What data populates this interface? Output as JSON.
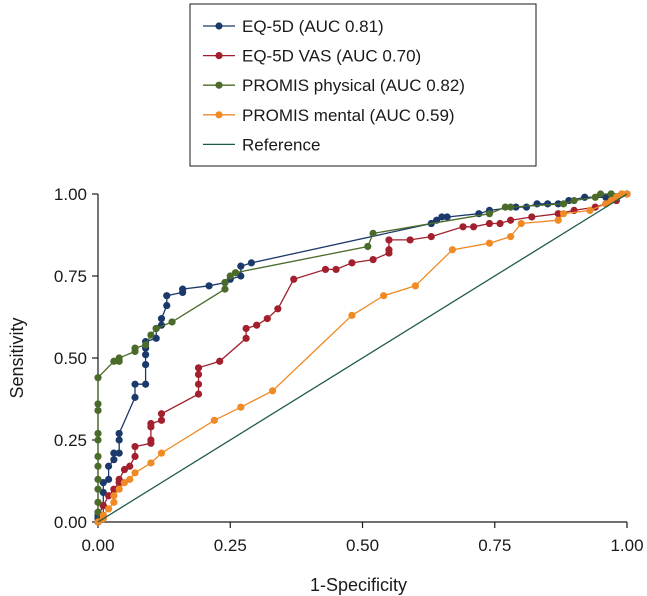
{
  "chart_data": {
    "type": "line",
    "xlabel": "1-Specificity",
    "ylabel": "Sensitivity",
    "xlim": [
      0,
      1
    ],
    "ylim": [
      0,
      1
    ],
    "xticks": [
      "0.00",
      "0.25",
      "0.50",
      "0.75",
      "1.00"
    ],
    "yticks": [
      "0.00",
      "0.25",
      "0.50",
      "0.75",
      "1.00"
    ],
    "legend_placement": "top-center",
    "grid": false,
    "series": [
      {
        "name": "EQ-5D (AUC 0.81)",
        "color": "#1b3a6b",
        "markers": true,
        "points": [
          [
            0,
            0
          ],
          [
            0,
            0.01
          ],
          [
            0,
            0.02
          ],
          [
            0.01,
            0.05
          ],
          [
            0.01,
            0.09
          ],
          [
            0.01,
            0.12
          ],
          [
            0.02,
            0.13
          ],
          [
            0.02,
            0.17
          ],
          [
            0.03,
            0.19
          ],
          [
            0.03,
            0.21
          ],
          [
            0.04,
            0.21
          ],
          [
            0.04,
            0.25
          ],
          [
            0.04,
            0.27
          ],
          [
            0.07,
            0.38
          ],
          [
            0.07,
            0.42
          ],
          [
            0.09,
            0.42
          ],
          [
            0.09,
            0.48
          ],
          [
            0.09,
            0.51
          ],
          [
            0.09,
            0.53
          ],
          [
            0.09,
            0.55
          ],
          [
            0.11,
            0.56
          ],
          [
            0.11,
            0.59
          ],
          [
            0.12,
            0.6
          ],
          [
            0.12,
            0.62
          ],
          [
            0.13,
            0.66
          ],
          [
            0.13,
            0.69
          ],
          [
            0.16,
            0.7
          ],
          [
            0.16,
            0.71
          ],
          [
            0.21,
            0.72
          ],
          [
            0.24,
            0.73
          ],
          [
            0.25,
            0.74
          ],
          [
            0.27,
            0.75
          ],
          [
            0.27,
            0.78
          ],
          [
            0.29,
            0.79
          ],
          [
            0.63,
            0.91
          ],
          [
            0.64,
            0.92
          ],
          [
            0.65,
            0.93
          ],
          [
            0.66,
            0.93
          ],
          [
            0.72,
            0.94
          ],
          [
            0.74,
            0.95
          ],
          [
            0.79,
            0.96
          ],
          [
            0.81,
            0.96
          ],
          [
            0.83,
            0.97
          ],
          [
            0.85,
            0.97
          ],
          [
            0.87,
            0.97
          ],
          [
            0.89,
            0.98
          ],
          [
            0.92,
            0.99
          ],
          [
            0.96,
            0.99
          ],
          [
            0.97,
            1.0
          ],
          [
            0.99,
            1.0
          ],
          [
            1.0,
            1.0
          ]
        ]
      },
      {
        "name": "EQ-5D VAS (AUC 0.70)",
        "color": "#a2202e",
        "markers": true,
        "points": [
          [
            0,
            0
          ],
          [
            0.01,
            0.02
          ],
          [
            0.01,
            0.05
          ],
          [
            0.02,
            0.08
          ],
          [
            0.03,
            0.1
          ],
          [
            0.04,
            0.12
          ],
          [
            0.04,
            0.13
          ],
          [
            0.05,
            0.16
          ],
          [
            0.06,
            0.17
          ],
          [
            0.07,
            0.2
          ],
          [
            0.07,
            0.23
          ],
          [
            0.1,
            0.24
          ],
          [
            0.1,
            0.25
          ],
          [
            0.1,
            0.29
          ],
          [
            0.1,
            0.3
          ],
          [
            0.12,
            0.31
          ],
          [
            0.12,
            0.33
          ],
          [
            0.19,
            0.39
          ],
          [
            0.19,
            0.42
          ],
          [
            0.19,
            0.45
          ],
          [
            0.19,
            0.47
          ],
          [
            0.23,
            0.49
          ],
          [
            0.28,
            0.56
          ],
          [
            0.28,
            0.59
          ],
          [
            0.3,
            0.6
          ],
          [
            0.32,
            0.62
          ],
          [
            0.34,
            0.65
          ],
          [
            0.37,
            0.74
          ],
          [
            0.43,
            0.77
          ],
          [
            0.45,
            0.77
          ],
          [
            0.48,
            0.79
          ],
          [
            0.52,
            0.8
          ],
          [
            0.55,
            0.82
          ],
          [
            0.55,
            0.83
          ],
          [
            0.55,
            0.86
          ],
          [
            0.59,
            0.86
          ],
          [
            0.63,
            0.87
          ],
          [
            0.69,
            0.9
          ],
          [
            0.71,
            0.9
          ],
          [
            0.74,
            0.91
          ],
          [
            0.76,
            0.91
          ],
          [
            0.78,
            0.92
          ],
          [
            0.82,
            0.93
          ],
          [
            0.87,
            0.94
          ],
          [
            0.9,
            0.95
          ],
          [
            0.94,
            0.96
          ],
          [
            0.96,
            0.97
          ],
          [
            0.98,
            0.98
          ],
          [
            1.0,
            1.0
          ]
        ]
      },
      {
        "name": "PROMIS physical (AUC 0.82)",
        "color": "#4a6b2a",
        "markers": true,
        "points": [
          [
            0,
            0
          ],
          [
            0,
            0.03
          ],
          [
            0,
            0.06
          ],
          [
            0,
            0.1
          ],
          [
            0,
            0.13
          ],
          [
            0,
            0.17
          ],
          [
            0,
            0.2
          ],
          [
            0,
            0.25
          ],
          [
            0,
            0.27
          ],
          [
            0,
            0.34
          ],
          [
            0,
            0.36
          ],
          [
            0,
            0.44
          ],
          [
            0.03,
            0.49
          ],
          [
            0.04,
            0.49
          ],
          [
            0.04,
            0.5
          ],
          [
            0.07,
            0.52
          ],
          [
            0.07,
            0.53
          ],
          [
            0.09,
            0.54
          ],
          [
            0.1,
            0.57
          ],
          [
            0.11,
            0.59
          ],
          [
            0.14,
            0.61
          ],
          [
            0.24,
            0.71
          ],
          [
            0.24,
            0.73
          ],
          [
            0.25,
            0.75
          ],
          [
            0.26,
            0.76
          ],
          [
            0.51,
            0.84
          ],
          [
            0.52,
            0.88
          ],
          [
            0.74,
            0.94
          ],
          [
            0.77,
            0.96
          ],
          [
            0.78,
            0.96
          ],
          [
            0.88,
            0.97
          ],
          [
            0.9,
            0.98
          ],
          [
            0.94,
            0.99
          ],
          [
            0.95,
            1.0
          ],
          [
            0.97,
            1.0
          ],
          [
            1.0,
            1.0
          ]
        ]
      },
      {
        "name": "PROMIS mental (AUC 0.59)",
        "color": "#f08a24",
        "markers": true,
        "points": [
          [
            0,
            0
          ],
          [
            0.01,
            0.01
          ],
          [
            0.01,
            0.02
          ],
          [
            0.02,
            0.04
          ],
          [
            0.03,
            0.06
          ],
          [
            0.03,
            0.08
          ],
          [
            0.04,
            0.1
          ],
          [
            0.05,
            0.12
          ],
          [
            0.06,
            0.13
          ],
          [
            0.07,
            0.15
          ],
          [
            0.1,
            0.18
          ],
          [
            0.12,
            0.21
          ],
          [
            0.22,
            0.31
          ],
          [
            0.27,
            0.35
          ],
          [
            0.33,
            0.4
          ],
          [
            0.48,
            0.63
          ],
          [
            0.54,
            0.69
          ],
          [
            0.6,
            0.72
          ],
          [
            0.67,
            0.83
          ],
          [
            0.74,
            0.85
          ],
          [
            0.78,
            0.87
          ],
          [
            0.8,
            0.91
          ],
          [
            0.87,
            0.92
          ],
          [
            0.88,
            0.94
          ],
          [
            0.93,
            0.95
          ],
          [
            0.96,
            0.97
          ],
          [
            0.97,
            0.98
          ],
          [
            0.98,
            0.99
          ],
          [
            0.99,
            1.0
          ],
          [
            1.0,
            1.0
          ]
        ]
      },
      {
        "name": "Reference",
        "color": "#1e5a4a",
        "markers": false,
        "points": [
          [
            0,
            0
          ],
          [
            1,
            1
          ]
        ]
      }
    ]
  }
}
